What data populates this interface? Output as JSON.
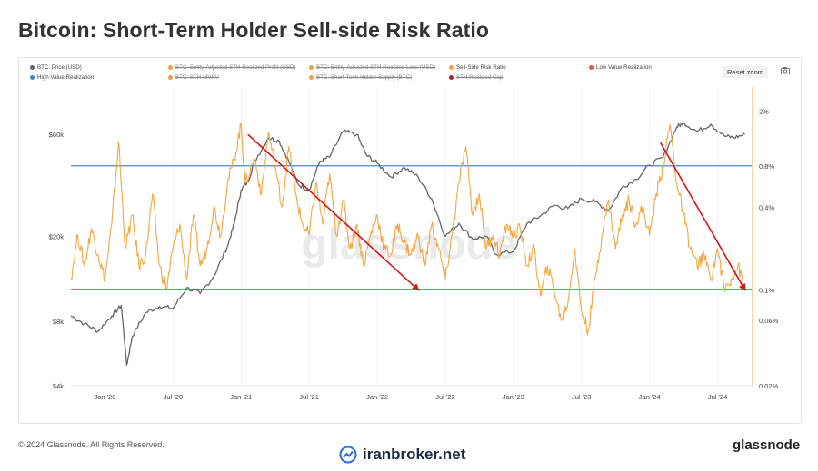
{
  "page": {
    "title": "Bitcoin: Short-Term Holder Sell-side Risk Ratio",
    "copyright": "© 2024 Glassnode. All Rights Reserved.",
    "brand": "glassnode",
    "site": "iranbroker.net",
    "watermark": "glassnode",
    "reset_zoom": "Reset zoom"
  },
  "legend": [
    {
      "label": "BTC: Price (USD)",
      "color": "#666666",
      "active": true
    },
    {
      "label": "BTC: Entity-Adjusted STH Realized Profit (USD)",
      "color": "#f0a040",
      "active": false
    },
    {
      "label": "BTC: Entity-Adjusted STH Realized Loss (USD)",
      "color": "#f0a040",
      "active": false
    },
    {
      "label": "Sell-Side Risk Ratio",
      "color": "#f7a540",
      "active": true
    },
    {
      "label": "Low Value Realization",
      "color": "#e05555",
      "active": true
    },
    {
      "label": "High Value Realization",
      "color": "#4a86c5",
      "active": true
    },
    {
      "label": "BTC: STH-MVRV",
      "color": "#f0a040",
      "active": false
    },
    {
      "label": "BTC: Short-Term Holder Supply (BTC)",
      "color": "#f0a040",
      "active": false
    },
    {
      "label": "STH Realized Cap",
      "color": "#b02030",
      "active": false
    }
  ],
  "chart_data": {
    "type": "line",
    "title": "Bitcoin: Short-Term Holder Sell-side Risk Ratio",
    "x_ticks": [
      "Jan '20",
      "Jul '20",
      "Jan '21",
      "Jul '21",
      "Jan '22",
      "Jul '22",
      "Jan '23",
      "Jul '23",
      "Jan '24",
      "Jul '24"
    ],
    "x_tick_values": [
      2020.0,
      2020.5,
      2021.0,
      2021.5,
      2022.0,
      2022.5,
      2023.0,
      2023.5,
      2024.0,
      2024.5
    ],
    "x_range": [
      2019.75,
      2024.75
    ],
    "y_left": {
      "label": "",
      "scale": "log",
      "range": [
        4000,
        100000
      ],
      "ticks": [
        "$4k",
        "$8k",
        "$20k",
        "$60k"
      ],
      "tick_values": [
        4000,
        8000,
        20000,
        60000
      ]
    },
    "y_right": {
      "label": "",
      "scale": "log",
      "range": [
        0.02,
        3
      ],
      "ticks": [
        "2%",
        "0.8%",
        "0.4%",
        "0.1%",
        "0.06%",
        "0.02%"
      ],
      "tick_values": [
        2,
        0.8,
        0.4,
        0.1,
        0.06,
        0.02
      ]
    },
    "reference_lines": [
      {
        "name": "High Value Realization",
        "axis": "right",
        "value": 0.8,
        "color": "#4a86c5"
      },
      {
        "name": "Low Value Realization",
        "axis": "right",
        "value": 0.1,
        "color": "#e05555"
      }
    ],
    "series": [
      {
        "name": "BTC: Price (USD)",
        "axis": "left",
        "color": "#666666",
        "x": [
          2019.75,
          2019.85,
          2019.95,
          2020.05,
          2020.12,
          2020.16,
          2020.2,
          2020.3,
          2020.4,
          2020.5,
          2020.6,
          2020.7,
          2020.8,
          2020.9,
          2020.95,
          2021.0,
          2021.05,
          2021.1,
          2021.2,
          2021.28,
          2021.35,
          2021.42,
          2021.5,
          2021.58,
          2021.65,
          2021.75,
          2021.85,
          2021.92,
          2022.0,
          2022.1,
          2022.2,
          2022.3,
          2022.4,
          2022.5,
          2022.6,
          2022.7,
          2022.8,
          2022.87,
          2023.0,
          2023.1,
          2023.2,
          2023.3,
          2023.4,
          2023.5,
          2023.6,
          2023.7,
          2023.8,
          2023.9,
          2024.0,
          2024.1,
          2024.2,
          2024.25,
          2024.35,
          2024.45,
          2024.55,
          2024.62,
          2024.7
        ],
        "values": [
          8500,
          7800,
          7200,
          8500,
          9500,
          5000,
          6800,
          8800,
          9400,
          9200,
          11500,
          10800,
          13000,
          18000,
          23000,
          33000,
          36000,
          45000,
          58000,
          56000,
          45000,
          35000,
          33000,
          45000,
          47000,
          62000,
          60000,
          48000,
          44000,
          38000,
          42000,
          38000,
          30000,
          20000,
          23000,
          19500,
          20000,
          16500,
          17000,
          23000,
          25000,
          28000,
          27000,
          30000,
          29000,
          26500,
          34000,
          37000,
          43000,
          47000,
          65000,
          68000,
          62000,
          67000,
          59000,
          58000,
          60000
        ]
      },
      {
        "name": "Sell-Side Risk Ratio",
        "axis": "right",
        "color": "#f7a540",
        "x": [
          2019.75,
          2019.8,
          2019.85,
          2019.9,
          2019.95,
          2020.0,
          2020.05,
          2020.1,
          2020.15,
          2020.2,
          2020.25,
          2020.3,
          2020.35,
          2020.4,
          2020.45,
          2020.5,
          2020.55,
          2020.6,
          2020.65,
          2020.7,
          2020.75,
          2020.8,
          2020.85,
          2020.9,
          2020.95,
          2021.0,
          2021.03,
          2021.1,
          2021.15,
          2021.2,
          2021.25,
          2021.3,
          2021.35,
          2021.4,
          2021.45,
          2021.5,
          2021.55,
          2021.6,
          2021.65,
          2021.7,
          2021.75,
          2021.8,
          2021.85,
          2021.9,
          2021.95,
          2022.0,
          2022.05,
          2022.1,
          2022.15,
          2022.2,
          2022.25,
          2022.3,
          2022.35,
          2022.4,
          2022.45,
          2022.5,
          2022.55,
          2022.6,
          2022.65,
          2022.7,
          2022.75,
          2022.8,
          2022.85,
          2022.9,
          2022.95,
          2023.0,
          2023.05,
          2023.1,
          2023.15,
          2023.2,
          2023.25,
          2023.3,
          2023.35,
          2023.4,
          2023.45,
          2023.5,
          2023.55,
          2023.6,
          2023.65,
          2023.7,
          2023.75,
          2023.8,
          2023.85,
          2023.9,
          2023.95,
          2024.0,
          2024.05,
          2024.1,
          2024.15,
          2024.2,
          2024.25,
          2024.3,
          2024.35,
          2024.4,
          2024.45,
          2024.5,
          2024.55,
          2024.6,
          2024.65,
          2024.7
        ],
        "values": [
          0.12,
          0.25,
          0.15,
          0.28,
          0.18,
          0.12,
          0.3,
          1.2,
          0.2,
          0.35,
          0.15,
          0.18,
          0.5,
          0.15,
          0.1,
          0.2,
          0.3,
          0.12,
          0.35,
          0.15,
          0.2,
          0.4,
          0.25,
          0.6,
          0.9,
          1.6,
          0.6,
          0.9,
          0.5,
          1.4,
          0.8,
          0.4,
          1.1,
          0.5,
          0.3,
          0.25,
          0.6,
          0.3,
          0.7,
          0.25,
          0.45,
          0.2,
          0.3,
          0.15,
          0.25,
          0.35,
          0.2,
          0.18,
          0.3,
          0.22,
          0.18,
          0.25,
          0.15,
          0.3,
          0.2,
          0.12,
          0.25,
          0.6,
          1.1,
          0.35,
          0.5,
          0.2,
          0.25,
          0.18,
          0.3,
          0.25,
          0.28,
          0.15,
          0.2,
          0.09,
          0.15,
          0.1,
          0.06,
          0.08,
          0.2,
          0.07,
          0.05,
          0.12,
          0.25,
          0.45,
          0.2,
          0.35,
          0.45,
          0.3,
          0.4,
          0.25,
          0.5,
          0.8,
          1.6,
          0.6,
          0.35,
          0.2,
          0.15,
          0.18,
          0.12,
          0.2,
          0.1,
          0.12,
          0.15,
          0.1
        ]
      }
    ],
    "annotations": [
      {
        "type": "arrow",
        "color": "#dd1111",
        "from": {
          "x": 2021.05,
          "y_price": 60000
        },
        "to": {
          "x": 2022.3,
          "y_ratio": 0.1
        }
      },
      {
        "type": "arrow",
        "color": "#dd1111",
        "from": {
          "x": 2024.08,
          "y_price": 55000
        },
        "to": {
          "x": 2024.7,
          "y_ratio": 0.1
        }
      }
    ],
    "grid": true,
    "legend_position": "top"
  }
}
